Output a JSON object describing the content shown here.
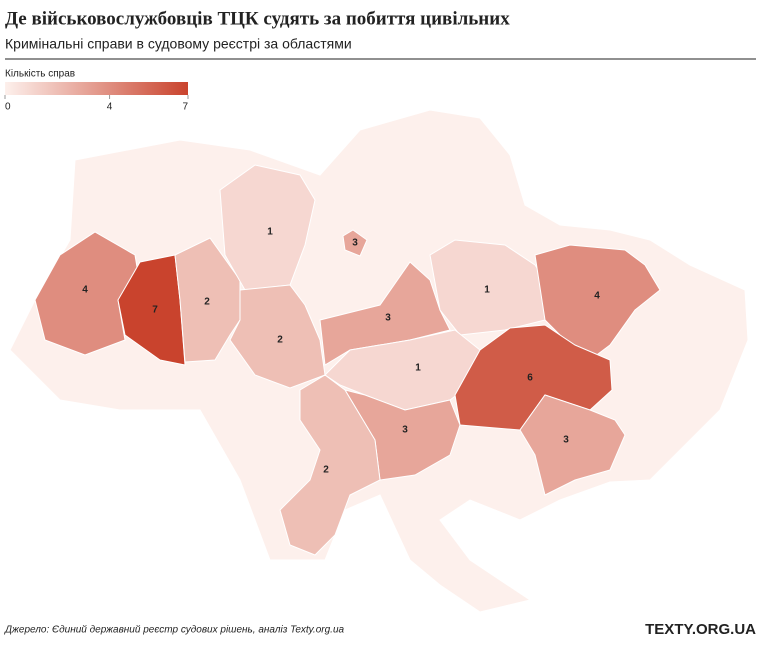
{
  "chart_data": {
    "type": "choropleth",
    "title": "Де військовослужбовців ТЦК судять за побиття цивільних",
    "subtitle": "Кримінальні справи в судовому реєстрі за областями",
    "legend_title": "Кількість справ",
    "scale_lim": [
      0,
      7
    ],
    "scale_ticks": [
      0,
      4,
      7
    ],
    "color_range": [
      "#fdf0ec",
      "#c9432d"
    ],
    "values": [
      4,
      7,
      2,
      1,
      3,
      2,
      3,
      1,
      4,
      1,
      6,
      3,
      3,
      2
    ]
  },
  "source": "Джерело: Єдиний державний реєстр судових рішень, аналіз Texty.org.ua",
  "logo": "TEXTY.ORG.UA"
}
